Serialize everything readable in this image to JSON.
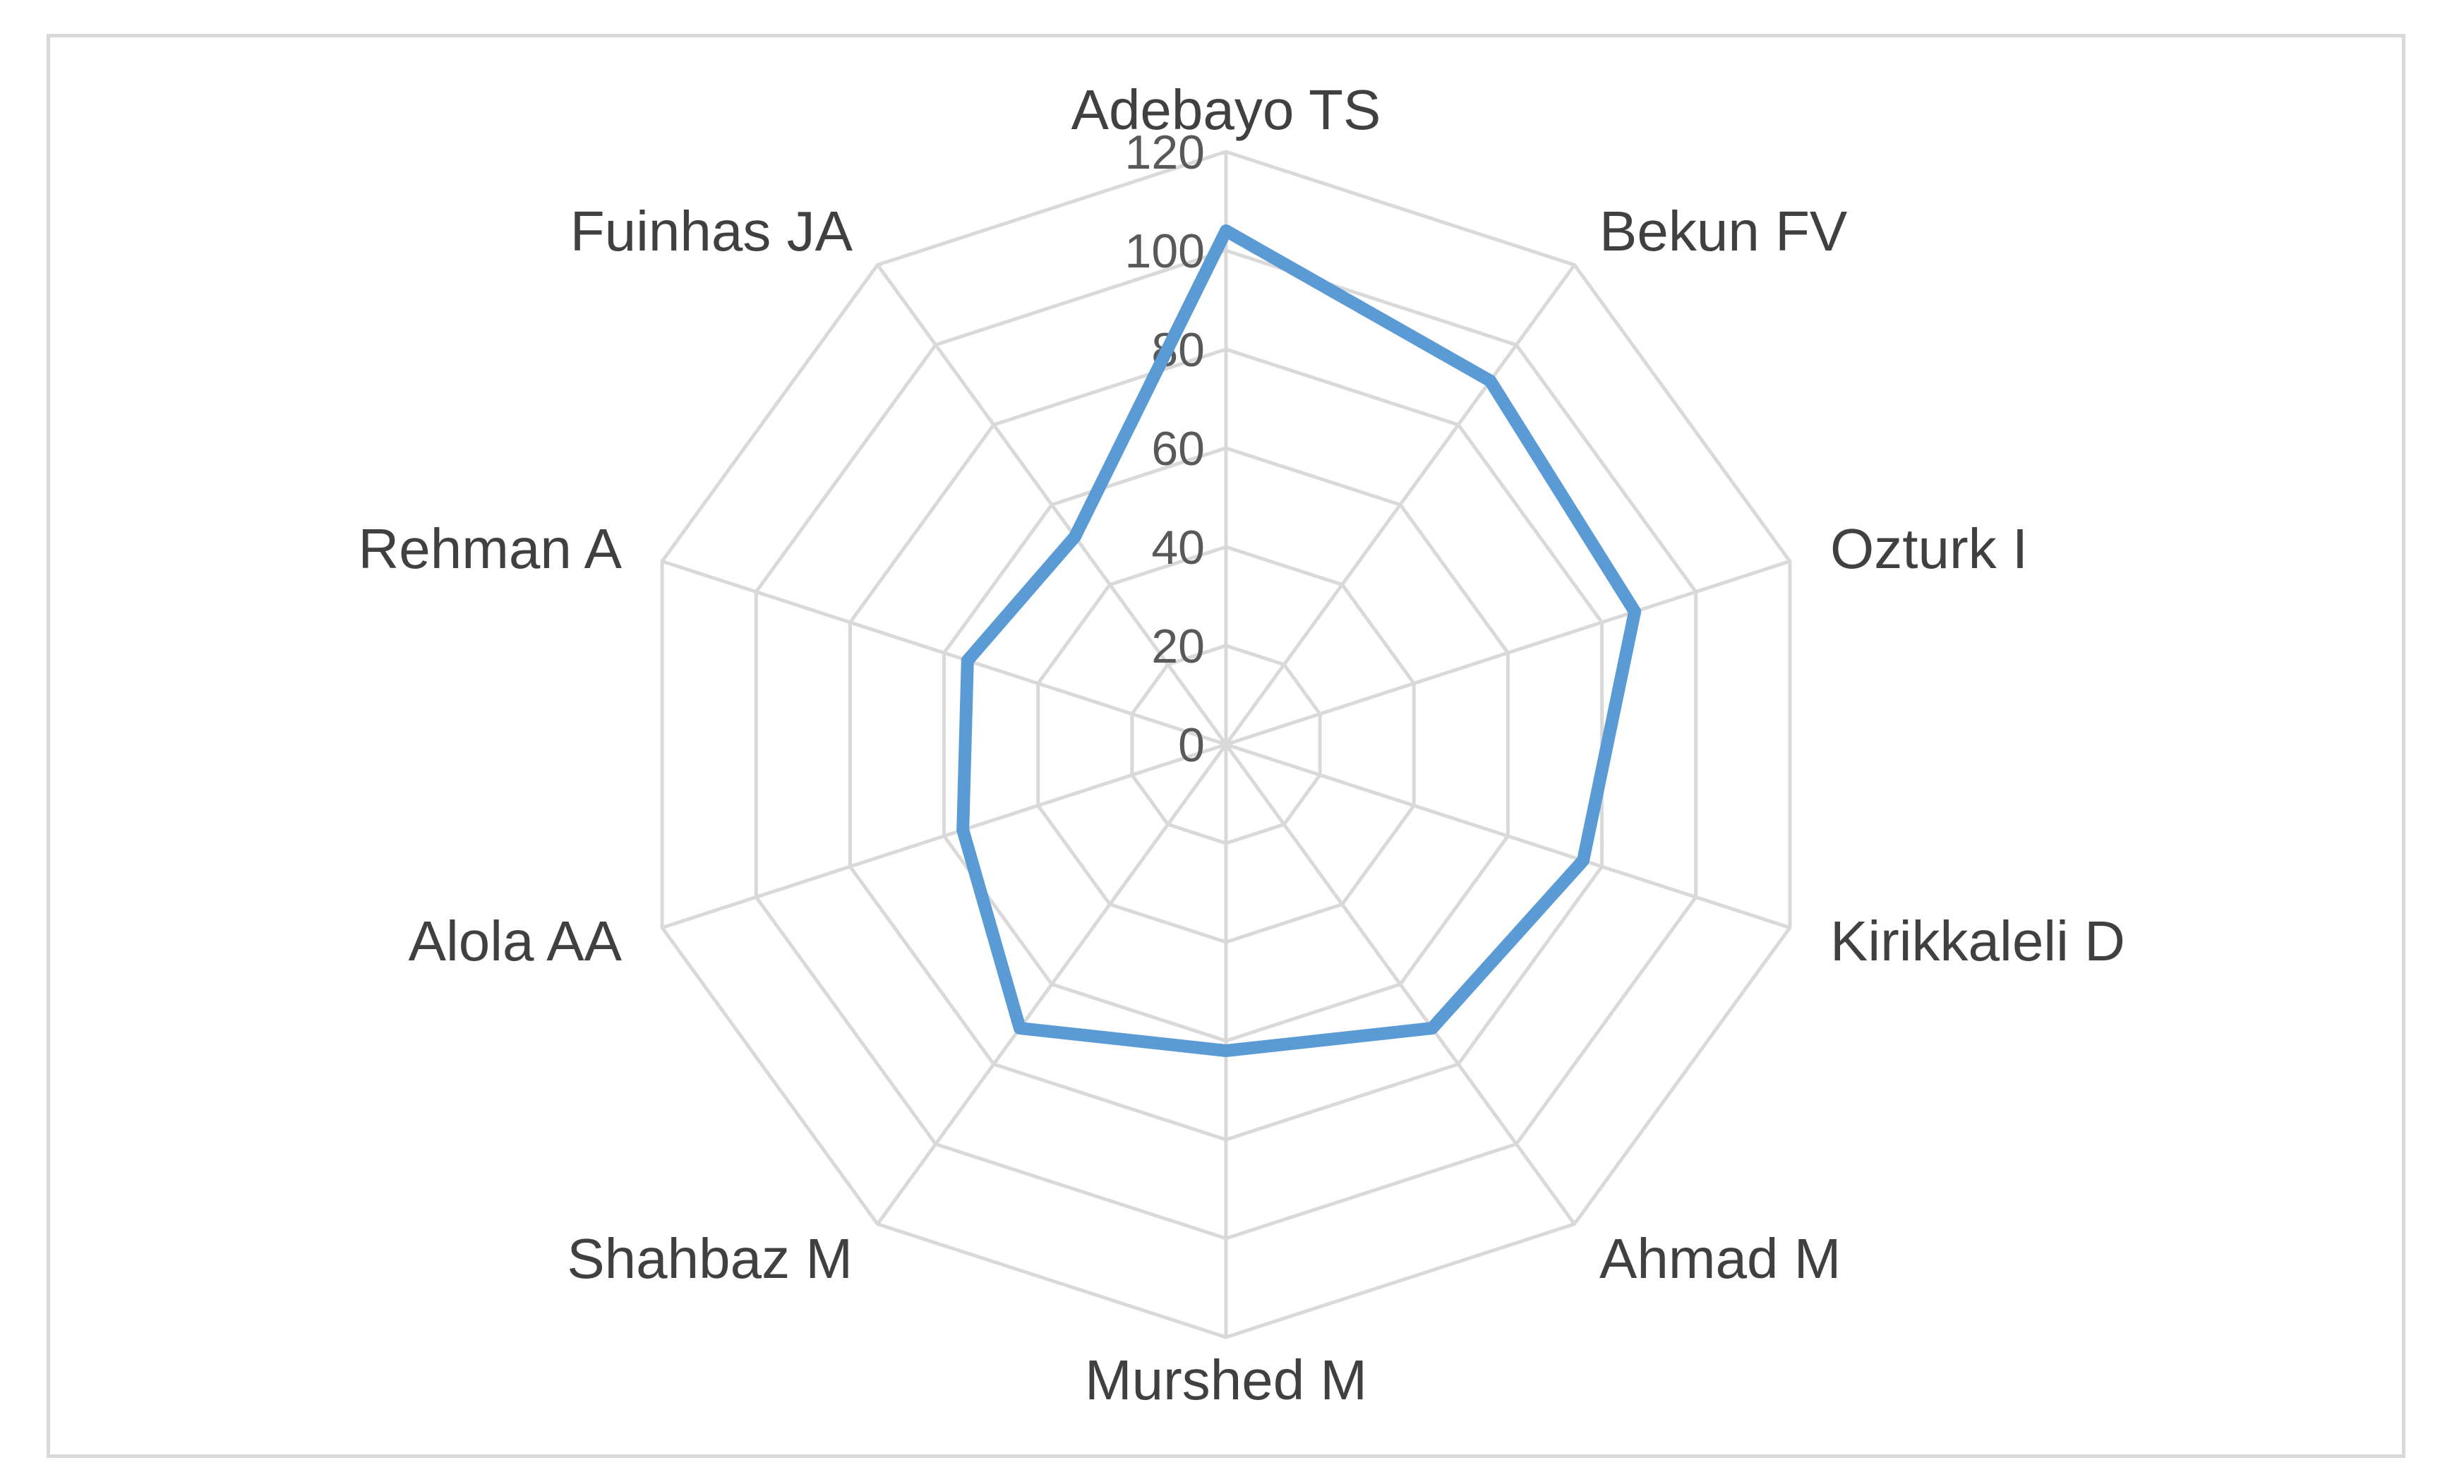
{
  "chart_data": {
    "type": "radar",
    "categories": [
      "Adebayo TS",
      "Bekun FV",
      "Ozturk I",
      "Kirikkaleli D",
      "Ahmad M",
      "Murshed M",
      "Shahbaz M",
      "Alola AA",
      "Rehman A",
      "Fuinhas JA"
    ],
    "series": [
      {
        "values": [
          104,
          91,
          87,
          76,
          71,
          62,
          71,
          56,
          55,
          52
        ]
      }
    ],
    "r_ticks": [
      0,
      20,
      40,
      60,
      80,
      100,
      120
    ],
    "rlim": [
      0,
      120
    ],
    "grid": true,
    "legend": "none",
    "colors": {
      "series": "#5b9bd5",
      "grid": "#d9d9d9",
      "frame": "#d9d9d9"
    }
  }
}
